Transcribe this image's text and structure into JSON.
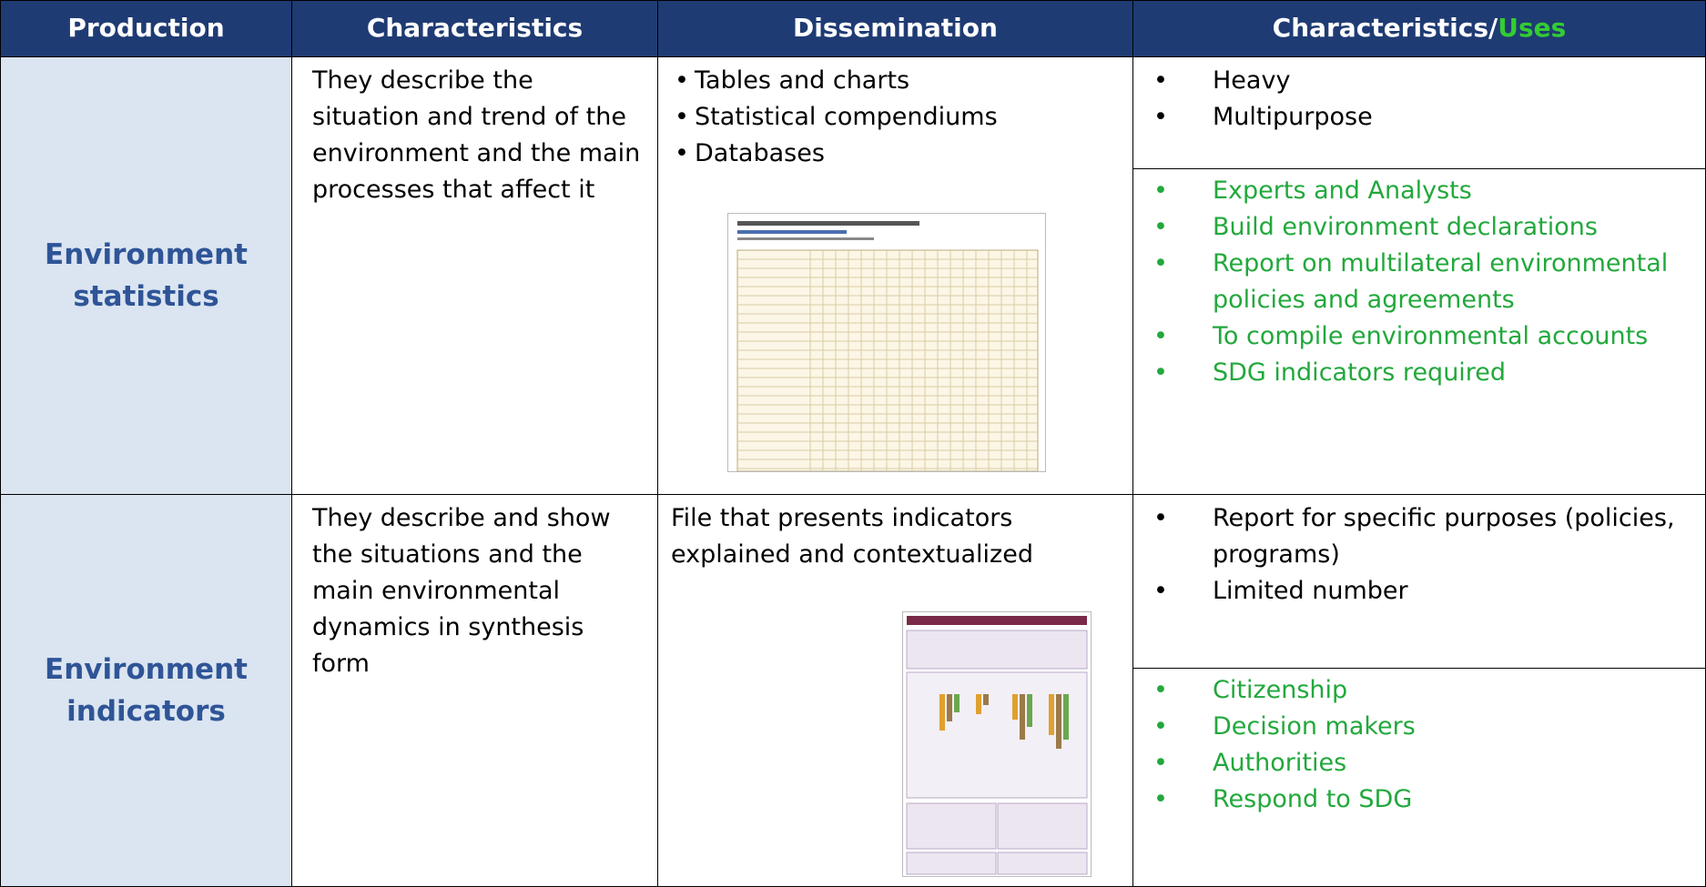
{
  "header": {
    "cells": [
      "Production",
      "Characteristics",
      "Dissemination",
      "Characteristics/"
    ],
    "highlight": "Uses"
  },
  "rows": [
    {
      "production": "Environment statistics",
      "characteristics": "They describe the situation and trend of the environment and the main processes that affect it",
      "dissemination": [
        "Tables and charts",
        "Statistical compendiums",
        "Databases"
      ],
      "features": [
        "Heavy",
        "Multipurpose"
      ],
      "uses": [
        "Experts and Analysts",
        "Build environment declarations",
        "Report on multilateral environmental policies and agreements",
        "To compile environmental accounts",
        "SDG indicators required"
      ]
    },
    {
      "production": "Environment indicators",
      "characteristics": "They describe and show the situations and the main environmental dynamics in synthesis form",
      "dissemination": "File that presents indicators explained and contextualized",
      "features": [
        "Report for specific purposes (policies, programs)",
        "Limited number"
      ],
      "uses": [
        "Citizenship",
        "Decision makers",
        "Authorities",
        "Respond to SDG"
      ]
    }
  ]
}
